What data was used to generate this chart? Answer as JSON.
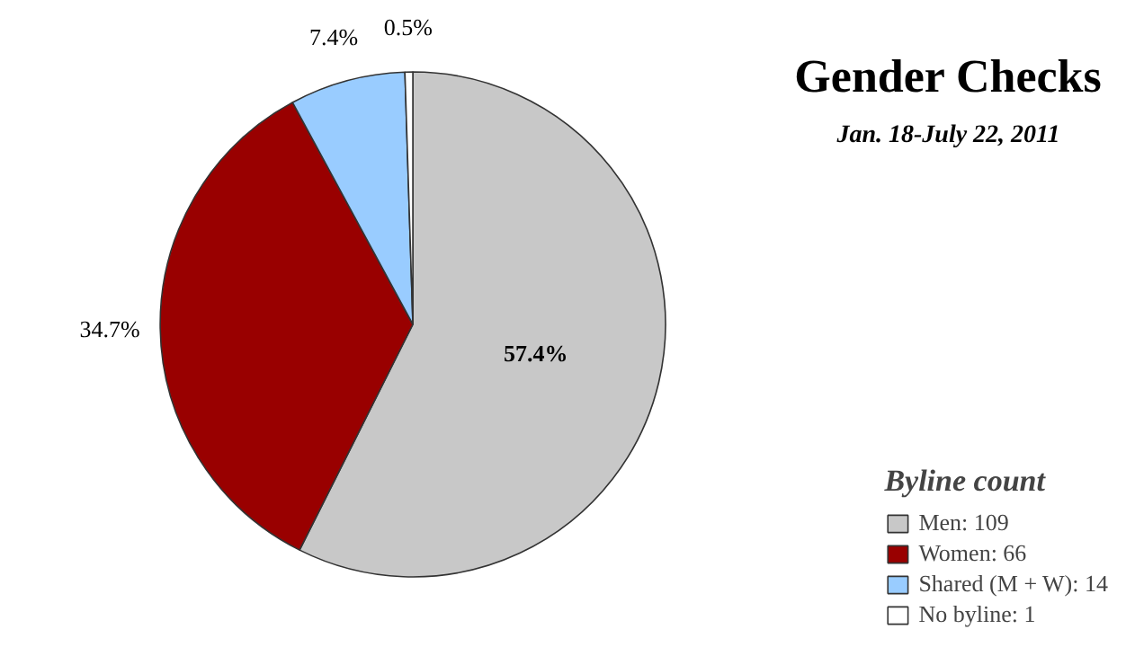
{
  "chart_data": {
    "type": "pie",
    "title": "Gender Checks",
    "subtitle": "Jan. 18-July 22, 2011",
    "legend_title": "Byline count",
    "categories": [
      "Men: 109",
      "Women: 66",
      "Shared (M + W): 14",
      "No byline: 1"
    ],
    "values": [
      57.4,
      34.7,
      7.4,
      0.5
    ],
    "value_labels": [
      "57.4%",
      "34.7%",
      "7.4%",
      "0.5%"
    ],
    "colors": [
      "#c8c8c8",
      "#990000",
      "#99ccff",
      "#ffffff"
    ],
    "legend": "bottom right"
  }
}
